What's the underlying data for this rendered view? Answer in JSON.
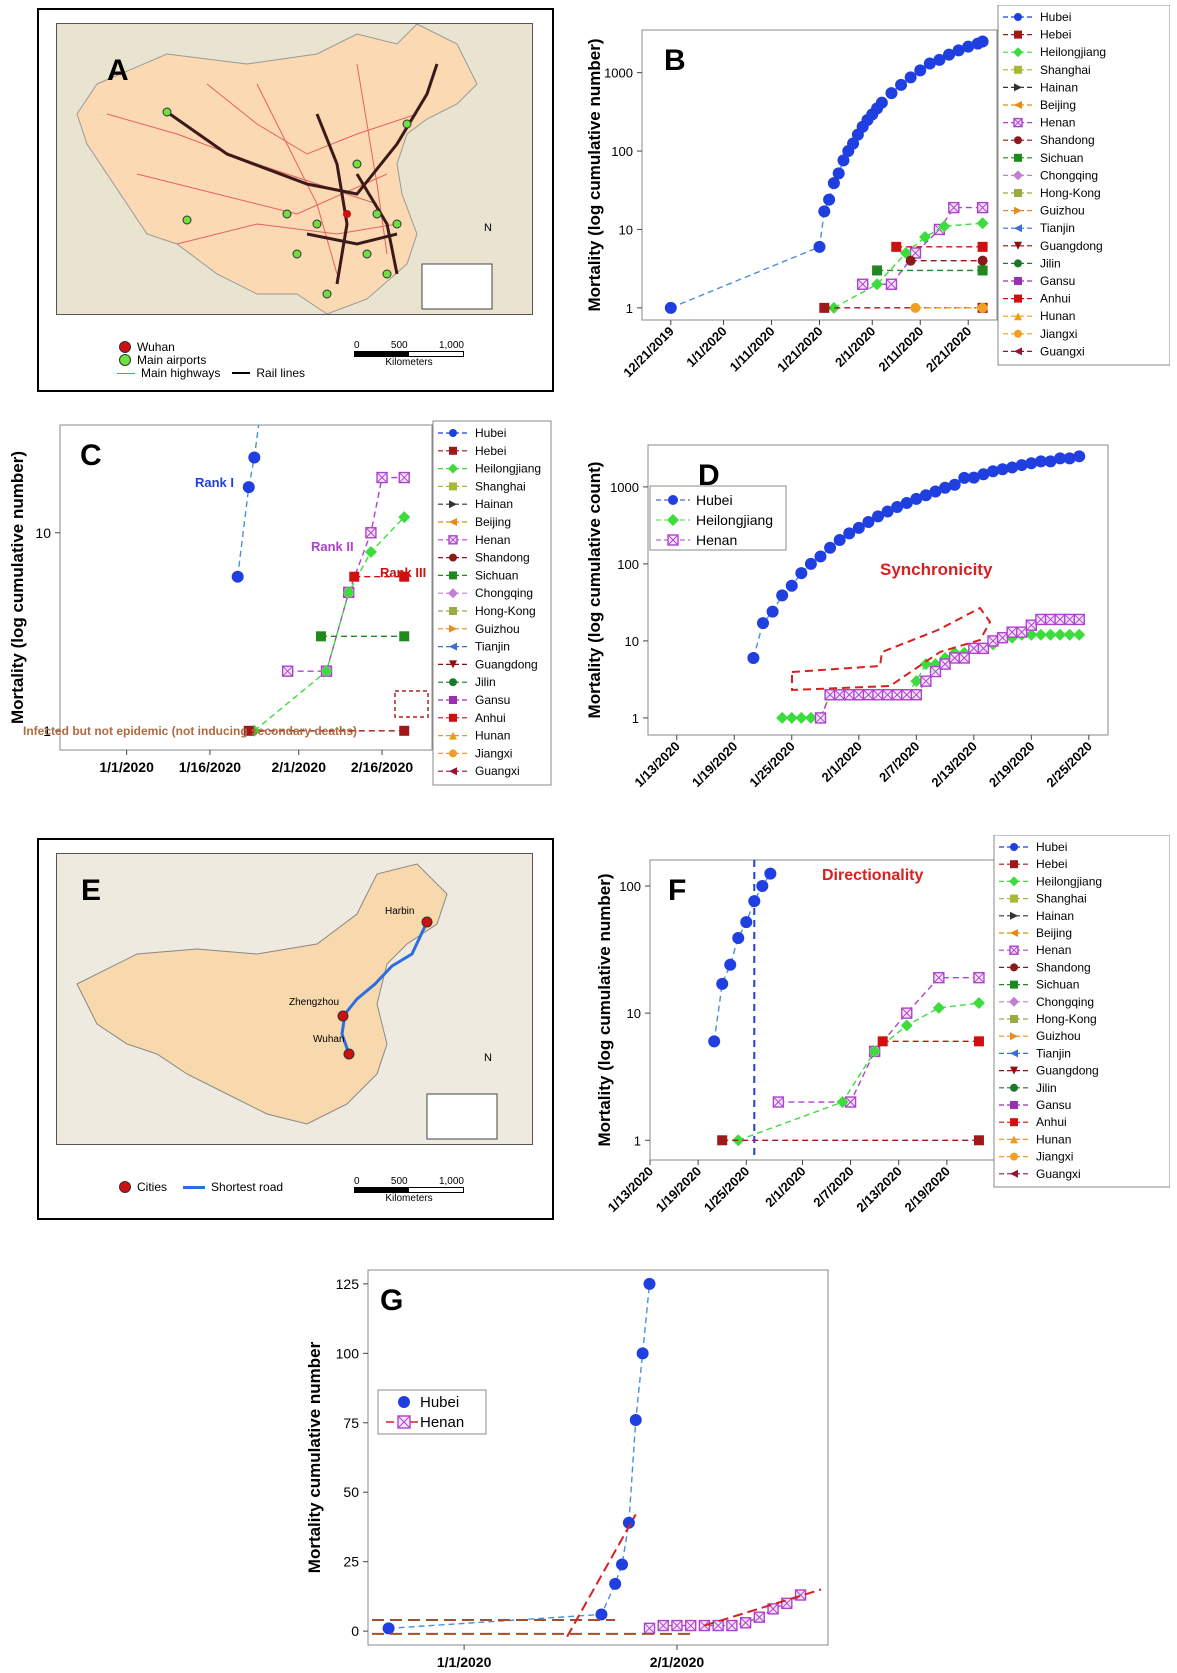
{
  "panel_a": {
    "letter": "A",
    "legend": {
      "wuhan": "Wuhan",
      "airports": "Main airports",
      "highways": "Main highways",
      "rail": "Rail lines"
    },
    "scale": {
      "ticks": [
        "0",
        "500",
        "1,000"
      ],
      "unit": "Kilometers"
    },
    "north": "N"
  },
  "panel_e": {
    "letter": "E",
    "cities": [
      "Harbin",
      "Zhengzhou",
      "Wuhan"
    ],
    "legend": {
      "cities": "Cities",
      "road": "Shortest road"
    },
    "scale": {
      "ticks": [
        "0",
        "500",
        "1,000"
      ],
      "unit": "Kilometers"
    },
    "north": "N"
  },
  "colors": {
    "Hubei": "#1f3fe0",
    "Hebei": "#a01818",
    "Heilongjiang": "#3ddc3d",
    "Shanghai": "#a8b838",
    "Hainan": "#333333",
    "Beijing": "#e88a10",
    "Henan": "#b040d0",
    "Shandong": "#8b1a1a",
    "Sichuan": "#1e8a1e",
    "Chongqing": "#c080d0",
    "Hong-Kong": "#9aaa44",
    "Guizhou": "#e09020",
    "Tianjin": "#3a6fd8",
    "Guangdong": "#8b1010",
    "Jilin": "#1a7a2a",
    "Gansu": "#9a30b0",
    "Anhui": "#d01010",
    "Hunan": "#e8a010",
    "Jiangxi": "#f0a020",
    "Guangxi": "#9a1030",
    "accent_red": "#d92020"
  },
  "legend_b": [
    "Hubei",
    "Hebei",
    "Heilongjiang",
    "Shanghai",
    "Hainan",
    "Beijing",
    "Henan",
    "Shandong",
    "Sichuan",
    "Chongqing",
    "Hong-Kong",
    "Guizhou",
    "Tianjin",
    "Guangdong",
    "Jilin",
    "Gansu",
    "Anhui",
    "Hunan",
    "Jiangxi",
    "Guangxi"
  ],
  "legend_c": [
    "Hubei",
    "Hebei",
    "Heilongjiang",
    "Shanghai",
    "Hainan",
    "Beijing",
    "Henan",
    "Shandong",
    "Sichuan",
    "Chongqing",
    "Hong-Kong",
    "Guizhou",
    "Tianjin",
    "Guangdong",
    "Jilin",
    "Gansu",
    "Anhui",
    "Hunan",
    "Jiangxi",
    "Guangxi"
  ],
  "legend_f": [
    "Hubei",
    "Hebei",
    "Heilongjiang",
    "Shanghai",
    "Hainan",
    "Beijing",
    "Henan",
    "Shandong",
    "Sichuan",
    "Chongqing",
    "Hong-Kong",
    "Guizhou",
    "Tianjin",
    "Guangdong",
    "Jilin",
    "Gansu",
    "Anhui",
    "Hunan",
    "Jiangxi",
    "Guangxi"
  ],
  "chart_data": [
    {
      "id": "B",
      "type": "scatter",
      "letter": "B",
      "ylabel": "Mortality (log cumulative number)",
      "yscale": "log",
      "yticks": [
        "1",
        "10",
        "100",
        "1000"
      ],
      "xticks": [
        "12/21/2019",
        "1/1/2020",
        "1/11/2020",
        "1/21/2020",
        "2/1/2020",
        "2/11/2020",
        "2/21/2020"
      ],
      "series": [
        {
          "name": "Hubei",
          "x": [
            "2019-12-21",
            "2020-01-21",
            "2020-01-22",
            "2020-01-23",
            "2020-01-24",
            "2020-01-25",
            "2020-01-26",
            "2020-01-27",
            "2020-01-28",
            "2020-01-29",
            "2020-01-30",
            "2020-01-31",
            "2020-02-01",
            "2020-02-02",
            "2020-02-03",
            "2020-02-05",
            "2020-02-07",
            "2020-02-09",
            "2020-02-11",
            "2020-02-13",
            "2020-02-15",
            "2020-02-17",
            "2020-02-19",
            "2020-02-21",
            "2020-02-23",
            "2020-02-24"
          ],
          "y": [
            1,
            6,
            17,
            24,
            39,
            52,
            76,
            100,
            125,
            162,
            204,
            249,
            294,
            350,
            414,
            549,
            699,
            871,
            1068,
            1310,
            1457,
            1696,
            1921,
            2144,
            2346,
            2495
          ]
        },
        {
          "name": "Henan",
          "x": [
            "2020-01-30",
            "2020-02-05",
            "2020-02-10",
            "2020-02-15",
            "2020-02-18",
            "2020-02-24"
          ],
          "y": [
            2,
            2,
            5,
            10,
            19,
            19
          ]
        },
        {
          "name": "Heilongjiang",
          "x": [
            "2020-01-24",
            "2020-02-02",
            "2020-02-08",
            "2020-02-12",
            "2020-02-16",
            "2020-02-24"
          ],
          "y": [
            1,
            2,
            5,
            8,
            11,
            12
          ]
        },
        {
          "name": "Anhui",
          "x": [
            "2020-02-06",
            "2020-02-24"
          ],
          "y": [
            6,
            6
          ]
        },
        {
          "name": "Shandong",
          "x": [
            "2020-02-09",
            "2020-02-24"
          ],
          "y": [
            4,
            4
          ]
        },
        {
          "name": "Sichuan",
          "x": [
            "2020-02-02",
            "2020-02-24"
          ],
          "y": [
            3,
            3
          ]
        },
        {
          "name": "Hebei",
          "x": [
            "2020-01-22",
            "2020-02-24"
          ],
          "y": [
            1,
            1
          ]
        },
        {
          "name": "Jiangxi",
          "x": [
            "2020-02-10",
            "2020-02-24"
          ],
          "y": [
            1,
            1
          ]
        }
      ],
      "legend_position": "right"
    },
    {
      "id": "C",
      "type": "scatter",
      "letter": "C",
      "ylabel": "Mortality (log cumulative number)",
      "yscale": "log",
      "yticks": [
        "1",
        "10"
      ],
      "xticks": [
        "1/1/2020",
        "1/16/2020",
        "2/1/2020",
        "2/16/2020"
      ],
      "series": [
        {
          "name": "Hubei",
          "x": [
            "2020-01-21",
            "2020-01-23",
            "2020-01-24",
            "2020-01-25"
          ],
          "y": [
            6,
            17,
            24,
            39
          ]
        },
        {
          "name": "Henan",
          "x": [
            "2020-01-30",
            "2020-02-06",
            "2020-02-10",
            "2020-02-14",
            "2020-02-16",
            "2020-02-20"
          ],
          "y": [
            2,
            2,
            5,
            10,
            19,
            19
          ]
        },
        {
          "name": "Heilongjiang",
          "x": [
            "2020-01-24",
            "2020-02-06",
            "2020-02-10",
            "2020-02-14",
            "2020-02-20"
          ],
          "y": [
            1,
            2,
            5,
            8,
            12
          ]
        },
        {
          "name": "Anhui",
          "x": [
            "2020-02-11",
            "2020-02-20"
          ],
          "y": [
            6,
            6
          ]
        },
        {
          "name": "Sichuan",
          "x": [
            "2020-02-05",
            "2020-02-20"
          ],
          "y": [
            3,
            3
          ]
        },
        {
          "name": "Hebei",
          "x": [
            "2020-01-23",
            "2020-02-20"
          ],
          "y": [
            1,
            1
          ]
        }
      ],
      "annotations": [
        "Rank I",
        "Rank II",
        "Rank III",
        "Infected but not epidemic (not inducing secondary deaths)"
      ],
      "legend_position": "right"
    },
    {
      "id": "D",
      "type": "scatter",
      "letter": "D",
      "ylabel": "Mortality (log cumulative count)",
      "yscale": "log",
      "yticks": [
        "1",
        "10",
        "100",
        "1000"
      ],
      "xticks": [
        "1/13/2020",
        "1/19/2020",
        "1/25/2020",
        "2/1/2020",
        "2/7/2020",
        "2/13/2020",
        "2/19/2020",
        "2/25/2020"
      ],
      "series": [
        {
          "name": "Hubei",
          "x": [
            "2020-01-21",
            "2020-01-22",
            "2020-01-23",
            "2020-01-24",
            "2020-01-25",
            "2020-01-26",
            "2020-01-27",
            "2020-01-28",
            "2020-01-29",
            "2020-01-30",
            "2020-01-31",
            "2020-02-01",
            "2020-02-02",
            "2020-02-03",
            "2020-02-04",
            "2020-02-05",
            "2020-02-06",
            "2020-02-07",
            "2020-02-08",
            "2020-02-09",
            "2020-02-10",
            "2020-02-11",
            "2020-02-12",
            "2020-02-13",
            "2020-02-14",
            "2020-02-15",
            "2020-02-16",
            "2020-02-17",
            "2020-02-18",
            "2020-02-19",
            "2020-02-20",
            "2020-02-21",
            "2020-02-22",
            "2020-02-23",
            "2020-02-24"
          ],
          "y": [
            6,
            17,
            24,
            39,
            52,
            76,
            100,
            125,
            162,
            204,
            249,
            294,
            350,
            414,
            479,
            549,
            618,
            699,
            780,
            871,
            974,
            1068,
            1310,
            1318,
            1457,
            1596,
            1696,
            1789,
            1921,
            2029,
            2144,
            2144,
            2346,
            2346,
            2495
          ]
        },
        {
          "name": "Heilongjiang",
          "x": [
            "2020-01-24",
            "2020-01-25",
            "2020-01-26",
            "2020-01-27",
            "2020-01-28",
            "2020-01-29",
            "2020-01-30",
            "2020-01-31",
            "2020-02-01",
            "2020-02-02",
            "2020-02-03",
            "2020-02-04",
            "2020-02-05",
            "2020-02-06",
            "2020-02-07",
            "2020-02-08",
            "2020-02-09",
            "2020-02-10",
            "2020-02-11",
            "2020-02-12",
            "2020-02-13",
            "2020-02-14",
            "2020-02-15",
            "2020-02-16",
            "2020-02-17",
            "2020-02-18",
            "2020-02-19",
            "2020-02-20",
            "2020-02-21",
            "2020-02-22",
            "2020-02-23",
            "2020-02-24"
          ],
          "y": [
            1,
            1,
            1,
            1,
            1,
            2,
            2,
            2,
            2,
            2,
            2,
            2,
            2,
            2,
            3,
            5,
            5,
            6,
            7,
            7,
            8,
            8,
            9,
            11,
            11,
            12,
            12,
            12,
            12,
            12,
            12,
            12
          ]
        },
        {
          "name": "Henan",
          "x": [
            "2020-01-28",
            "2020-01-29",
            "2020-01-30",
            "2020-01-31",
            "2020-02-01",
            "2020-02-02",
            "2020-02-03",
            "2020-02-04",
            "2020-02-05",
            "2020-02-06",
            "2020-02-07",
            "2020-02-08",
            "2020-02-09",
            "2020-02-10",
            "2020-02-11",
            "2020-02-12",
            "2020-02-13",
            "2020-02-14",
            "2020-02-15",
            "2020-02-16",
            "2020-02-17",
            "2020-02-18",
            "2020-02-19",
            "2020-02-20",
            "2020-02-21",
            "2020-02-22",
            "2020-02-23",
            "2020-02-24"
          ],
          "y": [
            1,
            2,
            2,
            2,
            2,
            2,
            2,
            2,
            2,
            2,
            2,
            3,
            4,
            5,
            6,
            6,
            8,
            8,
            10,
            11,
            13,
            13,
            16,
            19,
            19,
            19,
            19,
            19
          ]
        }
      ],
      "annotations": [
        "Synchronicity"
      ],
      "legend_position": "top-left"
    },
    {
      "id": "F",
      "type": "scatter",
      "letter": "F",
      "ylabel": "Mortality (log cumulative number)",
      "yscale": "log",
      "yticks": [
        "1",
        "10",
        "100"
      ],
      "xticks": [
        "1/13/2020",
        "1/19/2020",
        "1/25/2020",
        "2/1/2020",
        "2/7/2020",
        "2/13/2020",
        "2/19/2020"
      ],
      "series": [
        {
          "name": "Hubei",
          "x": [
            "2020-01-21",
            "2020-01-22",
            "2020-01-23",
            "2020-01-24",
            "2020-01-25",
            "2020-01-26",
            "2020-01-27",
            "2020-01-28"
          ],
          "y": [
            6,
            17,
            24,
            39,
            52,
            76,
            100,
            125
          ]
        },
        {
          "name": "Henan",
          "x": [
            "2020-01-29",
            "2020-02-07",
            "2020-02-10",
            "2020-02-14",
            "2020-02-18",
            "2020-02-23"
          ],
          "y": [
            2,
            2,
            5,
            10,
            19,
            19
          ]
        },
        {
          "name": "Heilongjiang",
          "x": [
            "2020-01-24",
            "2020-02-06",
            "2020-02-10",
            "2020-02-14",
            "2020-02-18",
            "2020-02-23"
          ],
          "y": [
            1,
            2,
            5,
            8,
            11,
            12
          ]
        },
        {
          "name": "Anhui",
          "x": [
            "2020-02-11",
            "2020-02-23"
          ],
          "y": [
            6,
            6
          ]
        },
        {
          "name": "Hebei",
          "x": [
            "2020-01-22",
            "2020-02-23"
          ],
          "y": [
            1,
            1
          ]
        }
      ],
      "annotations": [
        "Directionality"
      ],
      "legend_position": "right"
    },
    {
      "id": "G",
      "type": "scatter",
      "letter": "G",
      "ylabel": "Mortality cumulative number",
      "yscale": "linear",
      "ylim": [
        -5,
        130
      ],
      "yticks": [
        "0",
        "25",
        "50",
        "75",
        "100",
        "125"
      ],
      "xticks": [
        "1/1/2020",
        "2/1/2020"
      ],
      "series": [
        {
          "name": "Hubei",
          "x": [
            "2019-12-21",
            "2020-01-21",
            "2020-01-23",
            "2020-01-24",
            "2020-01-25",
            "2020-01-26",
            "2020-01-27",
            "2020-01-28"
          ],
          "y": [
            1,
            6,
            17,
            24,
            39,
            76,
            100,
            125
          ]
        },
        {
          "name": "Henan",
          "x": [
            "2020-01-28",
            "2020-01-30",
            "2020-02-01",
            "2020-02-03",
            "2020-02-05",
            "2020-02-07",
            "2020-02-09",
            "2020-02-11",
            "2020-02-13",
            "2020-02-15",
            "2020-02-17",
            "2020-02-19"
          ],
          "y": [
            1,
            2,
            2,
            2,
            2,
            2,
            2,
            3,
            5,
            8,
            10,
            13
          ]
        }
      ],
      "legend": [
        "Hubei",
        "Henan"
      ],
      "legend_position": "top-left"
    }
  ]
}
